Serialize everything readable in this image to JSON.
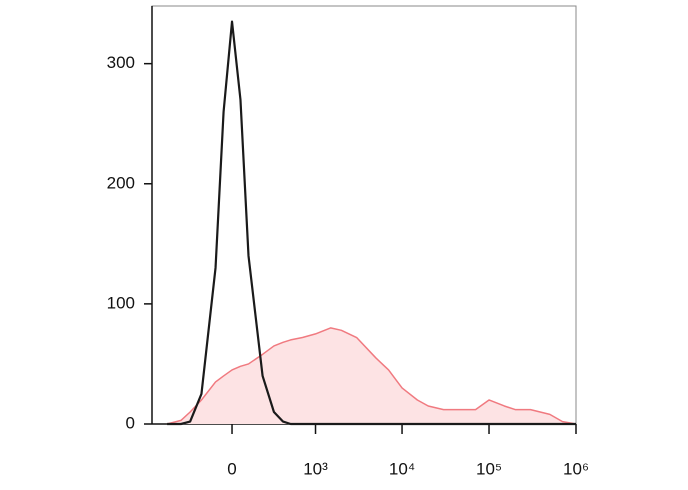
{
  "chart_data": {
    "type": "line",
    "xscale": "biexponential",
    "x": [
      -600,
      -400,
      -300,
      -200,
      -100,
      -50,
      0,
      50,
      100,
      200,
      300,
      400,
      500,
      700,
      1000,
      1500,
      2000,
      3000,
      5000,
      7000,
      10000,
      15000,
      20000,
      30000,
      50000,
      70000,
      100000,
      150000,
      200000,
      300000,
      500000,
      700000,
      1000000
    ],
    "series": [
      {
        "color": "#f07a80",
        "fill": "#fde3e4",
        "values": [
          0,
          3,
          10,
          20,
          35,
          40,
          45,
          48,
          50,
          58,
          65,
          68,
          70,
          72,
          75,
          80,
          78,
          72,
          55,
          45,
          30,
          20,
          15,
          12,
          12,
          12,
          20,
          15,
          12,
          12,
          8,
          2,
          0
        ]
      },
      {
        "color": "#1a1a1a",
        "values": [
          0,
          0,
          2,
          25,
          130,
          260,
          335,
          270,
          140,
          40,
          10,
          2,
          0,
          0,
          0,
          0,
          0,
          0,
          0,
          0,
          0,
          0,
          0,
          0,
          0,
          0,
          0,
          0,
          0,
          0,
          0,
          0,
          0
        ]
      }
    ],
    "xlim": [
      -910,
      1000000
    ],
    "xticks": [
      0,
      {
        "value": 1000,
        "label": "10³"
      },
      {
        "value": 10000,
        "label": "10⁴"
      },
      {
        "value": 100000,
        "label": "10⁵"
      },
      {
        "value": 1000000,
        "label": "10⁶"
      }
    ],
    "ylim": [
      0,
      348
    ],
    "yticks": [
      0,
      100,
      200,
      300
    ]
  }
}
